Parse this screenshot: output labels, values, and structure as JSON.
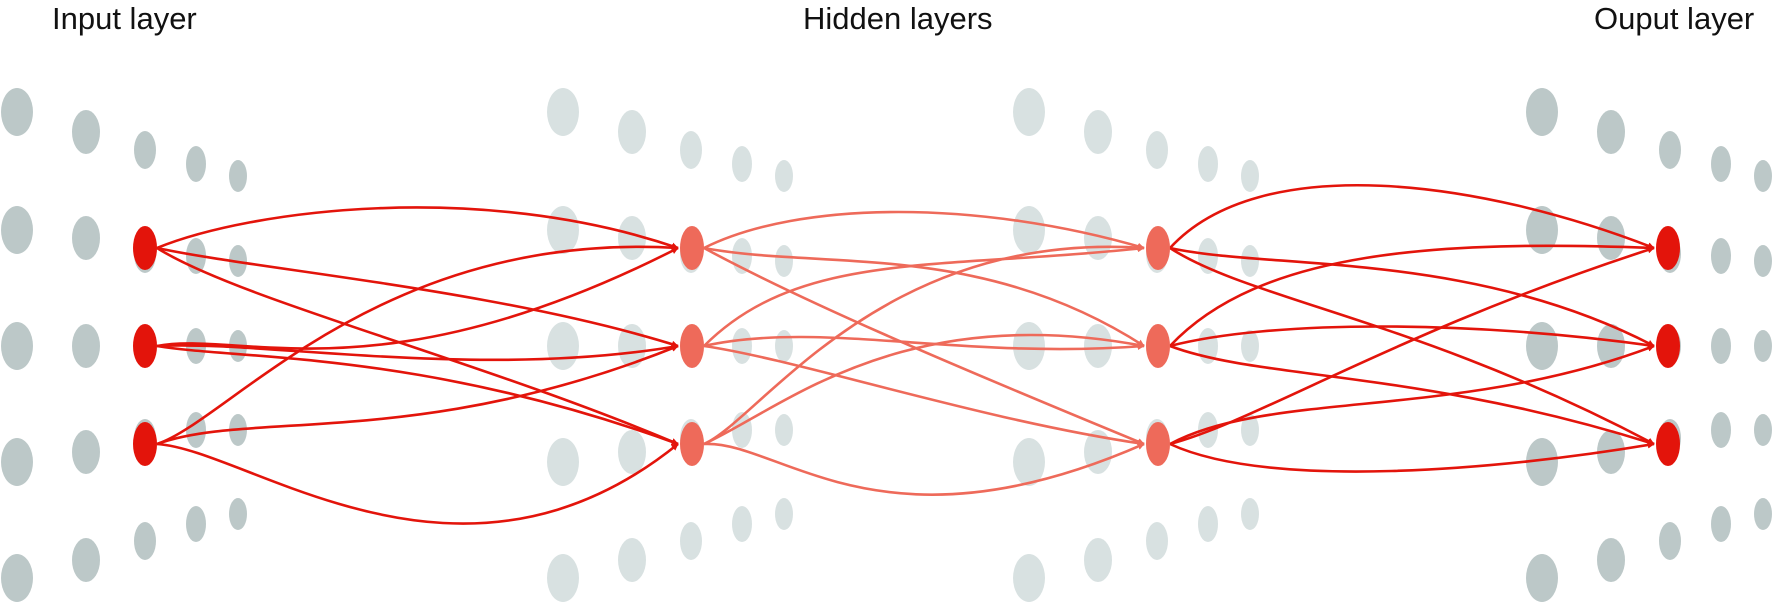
{
  "labels": {
    "input": "Input layer",
    "hidden": "Hidden layers",
    "output": "Ouput layer"
  },
  "colors": {
    "background": "#ffffff",
    "text": "#111111",
    "input_output_nodes": "#e3140b",
    "hidden_nodes": "#ee6a5a",
    "ghost_dark": "#bcc8c8",
    "ghost_light": "#d8e1e1"
  },
  "network": {
    "layers": [
      "input",
      "hidden-1",
      "hidden-2",
      "output"
    ],
    "active_nodes_per_layer": 3,
    "connections": "fully-connected"
  }
}
